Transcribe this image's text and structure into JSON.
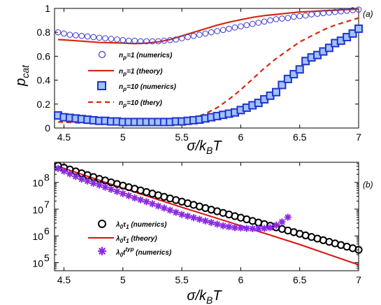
{
  "chart_data": [
    {
      "type": "line",
      "panel_label": "(a)",
      "xlabel_main": "σ/k",
      "xlabel_sub": "B",
      "xlabel_tail": "T",
      "ylabel_main": "p",
      "ylabel_sub": "cat",
      "xlim": [
        4.42,
        7.0
      ],
      "ylim": [
        0,
        1.0
      ],
      "xticks": [
        "4.5",
        "5",
        "5.5",
        "6",
        "6.5",
        "7"
      ],
      "xtick_values": [
        4.5,
        5.0,
        5.5,
        6.0,
        6.5,
        7.0
      ],
      "yticks": [
        "0",
        "0.2",
        "0.4",
        "0.6",
        "0.8",
        "1"
      ],
      "ytick_values": [
        0,
        0.2,
        0.4,
        0.6,
        0.8,
        1.0
      ],
      "legend": {
        "n1_numerics": {
          "main": "n",
          "sub": "p",
          "tail": "=1 (numerics)"
        },
        "n1_theory": {
          "main": "n",
          "sub": "p",
          "tail": "=1 (theory)"
        },
        "n10_numerics": {
          "main": "n",
          "sub": "p",
          "tail": "=10 (numerics)"
        },
        "n10_theory": {
          "main": "n",
          "sub": "p",
          "tail": "=10 (thery)"
        }
      },
      "colors": {
        "circle": "#3b3bd6",
        "theory": "#d62a10",
        "square_edge": "#2233cc",
        "square_fill": "#9fc3ff"
      },
      "series": {
        "n1_numerics": {
          "x": [
            4.45,
            4.5,
            4.55,
            4.6,
            4.65,
            4.7,
            4.75,
            4.8,
            4.85,
            4.9,
            4.95,
            5.0,
            5.05,
            5.1,
            5.15,
            5.2,
            5.25,
            5.3,
            5.35,
            5.4,
            5.45,
            5.5,
            5.55,
            5.6,
            5.65,
            5.7,
            5.75,
            5.8,
            5.85,
            5.9,
            5.95,
            6.0,
            6.05,
            6.1,
            6.15,
            6.2,
            6.25,
            6.3,
            6.35,
            6.4,
            6.45,
            6.5,
            6.55,
            6.6,
            6.65,
            6.7,
            6.75,
            6.8,
            6.85,
            6.9,
            6.95,
            7.0
          ],
          "y": [
            0.8,
            0.79,
            0.78,
            0.775,
            0.77,
            0.765,
            0.76,
            0.755,
            0.75,
            0.745,
            0.74,
            0.735,
            0.73,
            0.73,
            0.725,
            0.725,
            0.725,
            0.725,
            0.73,
            0.735,
            0.74,
            0.75,
            0.76,
            0.77,
            0.78,
            0.79,
            0.8,
            0.81,
            0.82,
            0.83,
            0.84,
            0.85,
            0.86,
            0.87,
            0.88,
            0.89,
            0.9,
            0.91,
            0.915,
            0.92,
            0.93,
            0.935,
            0.94,
            0.95,
            0.955,
            0.96,
            0.965,
            0.97,
            0.975,
            0.98,
            0.985,
            0.99
          ]
        },
        "n1_theory": {
          "x": [
            4.45,
            4.6,
            4.8,
            5.0,
            5.1,
            5.2,
            5.3,
            5.4,
            5.5,
            5.6,
            5.7,
            5.8,
            5.9,
            6.0,
            6.1,
            6.2,
            6.3,
            6.4,
            6.5,
            6.6,
            6.7,
            6.8,
            6.9,
            7.0
          ],
          "y": [
            0.74,
            0.73,
            0.715,
            0.71,
            0.705,
            0.71,
            0.72,
            0.74,
            0.77,
            0.8,
            0.83,
            0.86,
            0.885,
            0.905,
            0.925,
            0.94,
            0.95,
            0.96,
            0.97,
            0.975,
            0.98,
            0.985,
            0.99,
            0.995
          ]
        },
        "n10_numerics": {
          "x": [
            4.45,
            4.5,
            4.55,
            4.6,
            4.65,
            4.7,
            4.75,
            4.8,
            4.85,
            4.9,
            4.95,
            5.0,
            5.05,
            5.1,
            5.15,
            5.2,
            5.25,
            5.3,
            5.35,
            5.4,
            5.45,
            5.5,
            5.55,
            5.6,
            5.65,
            5.7,
            5.75,
            5.8,
            5.85,
            5.9,
            5.95,
            6.0,
            6.05,
            6.1,
            6.15,
            6.2,
            6.25,
            6.3,
            6.35,
            6.4,
            6.45,
            6.5,
            6.55,
            6.6,
            6.65,
            6.7,
            6.75,
            6.8,
            6.85,
            6.9,
            6.95,
            7.0
          ],
          "y": [
            0.105,
            0.09,
            0.085,
            0.08,
            0.075,
            0.07,
            0.065,
            0.06,
            0.06,
            0.055,
            0.055,
            0.05,
            0.05,
            0.05,
            0.05,
            0.05,
            0.05,
            0.05,
            0.05,
            0.05,
            0.055,
            0.055,
            0.06,
            0.065,
            0.07,
            0.08,
            0.09,
            0.1,
            0.11,
            0.12,
            0.13,
            0.15,
            0.17,
            0.19,
            0.21,
            0.24,
            0.27,
            0.3,
            0.36,
            0.41,
            0.45,
            0.49,
            0.56,
            0.59,
            0.61,
            0.64,
            0.67,
            0.71,
            0.73,
            0.76,
            0.79,
            0.83
          ]
        },
        "n10_theory": {
          "x": [
            4.45,
            4.7,
            4.9,
            5.1,
            5.2,
            5.3,
            5.4,
            5.5,
            5.6,
            5.7,
            5.8,
            5.9,
            6.0,
            6.1,
            6.2,
            6.3,
            6.4,
            6.5,
            6.6,
            6.7,
            6.8,
            6.9,
            7.0
          ],
          "y": [
            0.05,
            0.04,
            0.035,
            0.03,
            0.03,
            0.032,
            0.04,
            0.055,
            0.08,
            0.12,
            0.17,
            0.24,
            0.32,
            0.41,
            0.5,
            0.58,
            0.65,
            0.72,
            0.77,
            0.82,
            0.86,
            0.89,
            0.92
          ]
        }
      }
    },
    {
      "type": "line",
      "panel_label": "(b)",
      "xlabel_main": "σ/k",
      "xlabel_sub": "B",
      "xlabel_tail": "T",
      "scale": "log",
      "xlim": [
        4.42,
        7.0
      ],
      "ylim_log10": [
        4.7,
        8.75
      ],
      "xticks": [
        "4.5",
        "5",
        "5.5",
        "6",
        "6.5",
        "7"
      ],
      "xtick_values": [
        4.5,
        5.0,
        5.5,
        6.0,
        6.5,
        7.0
      ],
      "yticks": [
        {
          "base": "10",
          "exp": "5",
          "value": 5
        },
        {
          "base": "10",
          "exp": "6",
          "value": 6
        },
        {
          "base": "10",
          "exp": "7",
          "value": 7
        },
        {
          "base": "10",
          "exp": "8",
          "value": 8
        }
      ],
      "legend": {
        "tau_numerics": {
          "a": "λ",
          "a_sub": "0",
          "b": "τ",
          "b_sub": "1",
          "tail": " (numerics)"
        },
        "tau_theory": {
          "a": "λ",
          "a_sub": "0",
          "b": "τ",
          "b_sub": "1",
          "tail": " (theory)"
        },
        "typ_numerics": {
          "a": "λ",
          "a_sub": "0",
          "b": "t",
          "b_sup": "typ",
          "tail": " (numerics)"
        }
      },
      "colors": {
        "circle": "#000000",
        "theory": "#e01010",
        "star": "#8a2be2"
      },
      "series": {
        "tau_numerics": {
          "x": [
            4.45,
            4.5,
            4.55,
            4.6,
            4.65,
            4.7,
            4.75,
            4.8,
            4.85,
            4.9,
            4.95,
            5.0,
            5.05,
            5.1,
            5.15,
            5.2,
            5.25,
            5.3,
            5.35,
            5.4,
            5.45,
            5.5,
            5.55,
            5.6,
            5.65,
            5.7,
            5.75,
            5.8,
            5.85,
            5.9,
            5.95,
            6.0,
            6.05,
            6.1,
            6.15,
            6.2,
            6.25,
            6.3,
            6.35,
            6.4,
            6.45,
            6.5,
            6.55,
            6.6,
            6.65,
            6.7,
            6.75,
            6.8,
            6.85,
            6.9,
            6.95,
            7.0
          ],
          "log10y": [
            8.62,
            8.55,
            8.48,
            8.41,
            8.34,
            8.27,
            8.2,
            8.13,
            8.07,
            8.0,
            7.94,
            7.88,
            7.82,
            7.76,
            7.7,
            7.64,
            7.58,
            7.52,
            7.46,
            7.4,
            7.34,
            7.28,
            7.22,
            7.16,
            7.1,
            7.04,
            6.98,
            6.92,
            6.86,
            6.8,
            6.74,
            6.68,
            6.62,
            6.56,
            6.5,
            6.44,
            6.38,
            6.32,
            6.26,
            6.2,
            6.14,
            6.08,
            6.02,
            5.96,
            5.9,
            5.84,
            5.78,
            5.72,
            5.66,
            5.6,
            5.54,
            5.48
          ]
        },
        "tau_theory": {
          "x": [
            4.45,
            5.0,
            5.5,
            6.0,
            6.5,
            7.0
          ],
          "log10y": [
            8.6,
            7.78,
            7.07,
            6.38,
            5.68,
            4.92
          ]
        },
        "typ_numerics": {
          "x": [
            4.45,
            4.5,
            4.55,
            4.6,
            4.65,
            4.7,
            4.75,
            4.8,
            4.85,
            4.9,
            4.95,
            5.0,
            5.05,
            5.1,
            5.15,
            5.2,
            5.25,
            5.3,
            5.35,
            5.4,
            5.45,
            5.5,
            5.55,
            5.6,
            5.65,
            5.7,
            5.75,
            5.8,
            5.85,
            5.9,
            5.95,
            6.0,
            6.05,
            6.1,
            6.15,
            6.2,
            6.25,
            6.3,
            6.35,
            6.4
          ],
          "log10y": [
            8.52,
            8.42,
            8.32,
            8.22,
            8.12,
            8.05,
            7.97,
            7.9,
            7.82,
            7.74,
            7.66,
            7.58,
            7.5,
            7.42,
            7.35,
            7.28,
            7.2,
            7.12,
            7.04,
            6.96,
            6.88,
            6.8,
            6.74,
            6.68,
            6.62,
            6.56,
            6.5,
            6.44,
            6.38,
            6.34,
            6.31,
            6.3,
            6.28,
            6.27,
            6.27,
            6.28,
            6.31,
            6.4,
            6.52,
            6.7
          ]
        }
      }
    }
  ]
}
